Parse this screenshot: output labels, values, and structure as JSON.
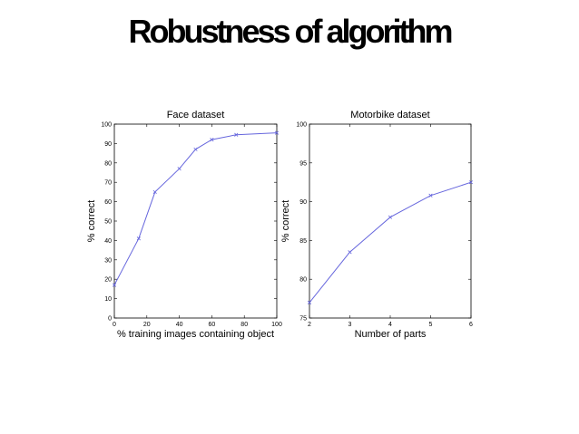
{
  "slide": {
    "title": "Robustness of algorithm"
  },
  "colors": {
    "series": "#6666dd",
    "axis": "#000000",
    "background": "#ffffff"
  },
  "chart_data": [
    {
      "type": "line",
      "title": "Face dataset",
      "xlabel": "% training images containing object",
      "ylabel": "% correct",
      "xlim": [
        0,
        100
      ],
      "ylim": [
        0,
        100
      ],
      "xticks": [
        "0",
        "20",
        "40",
        "60",
        "80",
        "100"
      ],
      "yticks": [
        "0",
        "10",
        "20",
        "30",
        "40",
        "50",
        "60",
        "70",
        "80",
        "90",
        "100"
      ],
      "grid": false,
      "series": [
        {
          "x": [
            0,
            15,
            25,
            40,
            50,
            60,
            75,
            100
          ],
          "y": [
            17,
            41,
            65,
            77,
            87,
            92,
            94.5,
            95.5
          ]
        }
      ]
    },
    {
      "type": "line",
      "title": "Motorbike dataset",
      "xlabel": "Number of parts",
      "ylabel": "% correct",
      "xlim": [
        2,
        6
      ],
      "ylim": [
        75,
        100
      ],
      "xticks": [
        "2",
        "3",
        "4",
        "5",
        "6"
      ],
      "yticks": [
        "75",
        "80",
        "85",
        "90",
        "95",
        "100"
      ],
      "grid": false,
      "series": [
        {
          "x": [
            2,
            3,
            4,
            5,
            6
          ],
          "y": [
            77,
            83.5,
            88,
            90.8,
            92.5
          ]
        }
      ]
    }
  ]
}
